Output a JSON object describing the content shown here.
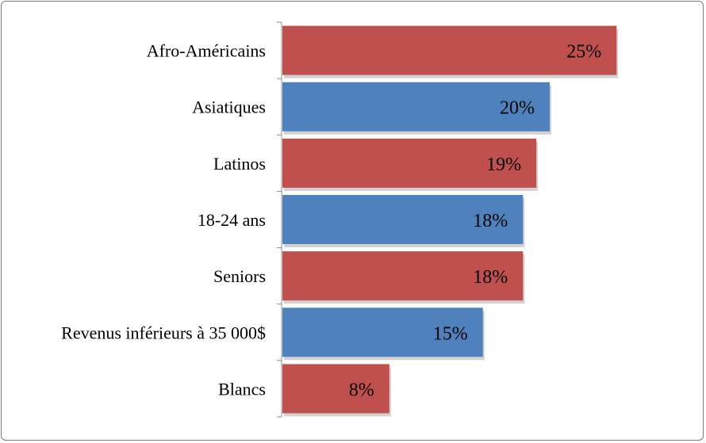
{
  "chart_data": {
    "type": "bar",
    "orientation": "horizontal",
    "categories": [
      "Afro-Américains",
      "Asiatiques",
      "Latinos",
      "18-24 ans",
      "Seniors",
      "Revenus inférieurs à 35 000$",
      "Blancs"
    ],
    "values": [
      25,
      20,
      19,
      18,
      18,
      15,
      8
    ],
    "value_labels": [
      "25%",
      "20%",
      "19%",
      "18%",
      "18%",
      "15%",
      "8%"
    ],
    "bar_colors": [
      "#c0504d",
      "#4f81bd",
      "#c0504d",
      "#4f81bd",
      "#c0504d",
      "#4f81bd",
      "#c0504d"
    ],
    "title": "",
    "xlabel": "",
    "ylabel": "",
    "xlim": [
      0,
      30
    ],
    "grid": false,
    "legend": "none"
  }
}
